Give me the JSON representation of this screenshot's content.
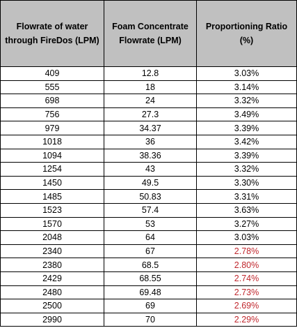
{
  "table": {
    "headers": [
      "Flowrate of water through FireDos (LPM)",
      "Foam Concentrate Flowrate (LPM)",
      "Proportioning Ratio (%)"
    ],
    "highlight_color": "#c0272d",
    "rows": [
      {
        "water": "409",
        "foam": "12.8",
        "ratio": "3.03%",
        "flag": false
      },
      {
        "water": "555",
        "foam": "18",
        "ratio": "3.14%",
        "flag": false
      },
      {
        "water": "698",
        "foam": "24",
        "ratio": "3.32%",
        "flag": false
      },
      {
        "water": "756",
        "foam": "27.3",
        "ratio": "3.49%",
        "flag": false
      },
      {
        "water": "979",
        "foam": "34.37",
        "ratio": "3.39%",
        "flag": false
      },
      {
        "water": "1018",
        "foam": "36",
        "ratio": "3.42%",
        "flag": false
      },
      {
        "water": "1094",
        "foam": "38.36",
        "ratio": "3.39%",
        "flag": false
      },
      {
        "water": "1254",
        "foam": "43",
        "ratio": "3.32%",
        "flag": false
      },
      {
        "water": "1450",
        "foam": "49.5",
        "ratio": "3.30%",
        "flag": false
      },
      {
        "water": "1485",
        "foam": "50.83",
        "ratio": "3.31%",
        "flag": false
      },
      {
        "water": "1523",
        "foam": "57.4",
        "ratio": "3.63%",
        "flag": false
      },
      {
        "water": "1570",
        "foam": "53",
        "ratio": "3.27%",
        "flag": false
      },
      {
        "water": "2048",
        "foam": "64",
        "ratio": "3.03%",
        "flag": false
      },
      {
        "water": "2340",
        "foam": "67",
        "ratio": "2.78%",
        "flag": true
      },
      {
        "water": "2380",
        "foam": "68.5",
        "ratio": "2.80%",
        "flag": true
      },
      {
        "water": "2429",
        "foam": "68.55",
        "ratio": "2.74%",
        "flag": true
      },
      {
        "water": "2480",
        "foam": "69.48",
        "ratio": "2.73%",
        "flag": true
      },
      {
        "water": "2500",
        "foam": "69",
        "ratio": "2.69%",
        "flag": true
      },
      {
        "water": "2990",
        "foam": "70",
        "ratio": "2.29%",
        "flag": true
      }
    ]
  }
}
